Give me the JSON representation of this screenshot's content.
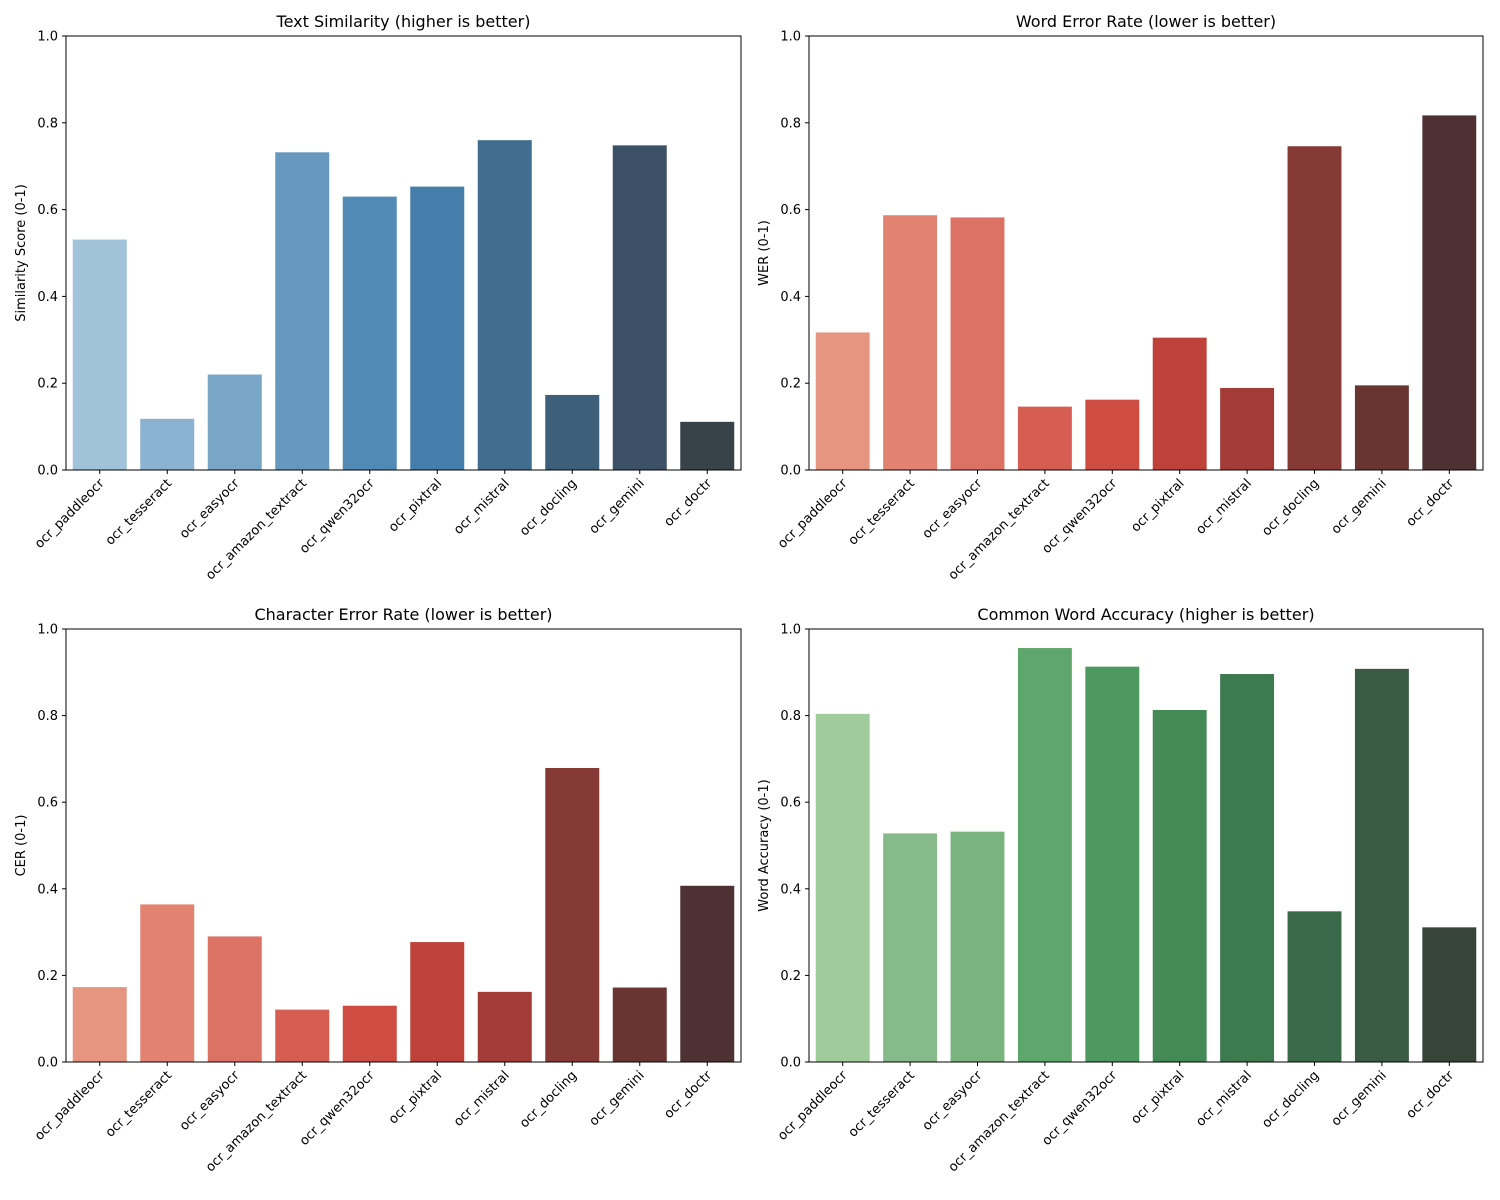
{
  "chart_data": [
    {
      "type": "bar",
      "title": "Text Similarity (higher is better)",
      "xlabel": "",
      "ylabel": "Similarity Score (0-1)",
      "ylim": [
        0,
        1
      ],
      "yticks": [
        "0.0",
        "0.2",
        "0.4",
        "0.6",
        "0.8",
        "1.0"
      ],
      "categories": [
        "ocr_paddleocr",
        "ocr_tesseract",
        "ocr_easyocr",
        "ocr_amazon_textract",
        "ocr_qwen32ocr",
        "ocr_pixtral",
        "ocr_mistral",
        "ocr_docling",
        "ocr_gemini",
        "ocr_doctr"
      ],
      "values": [
        0.531,
        0.118,
        0.22,
        0.732,
        0.63,
        0.653,
        0.76,
        0.173,
        0.748,
        0.111
      ],
      "colors": [
        "#a0c3d9",
        "#8bb2d0",
        "#79a6c7",
        "#6799bf",
        "#528ab6",
        "#457eaa",
        "#416e90",
        "#3e5f7a",
        "#3c5166",
        "#374249"
      ],
      "grid": false,
      "legend": "none"
    },
    {
      "type": "bar",
      "title": "Word Error Rate (lower is better)",
      "xlabel": "",
      "ylabel": "WER (0-1)",
      "ylim": [
        0,
        1
      ],
      "yticks": [
        "0.0",
        "0.2",
        "0.4",
        "0.6",
        "0.8",
        "1.0"
      ],
      "categories": [
        "ocr_paddleocr",
        "ocr_tesseract",
        "ocr_easyocr",
        "ocr_amazon_textract",
        "ocr_qwen32ocr",
        "ocr_pixtral",
        "ocr_mistral",
        "ocr_docling",
        "ocr_gemini",
        "ocr_doctr"
      ],
      "values": [
        0.317,
        0.587,
        0.582,
        0.146,
        0.162,
        0.305,
        0.189,
        0.746,
        0.195,
        0.817
      ],
      "colors": [
        "#e69580",
        "#e28371",
        "#dc7264",
        "#d65d51",
        "#cf4c42",
        "#bf423a",
        "#a33c36",
        "#863a35",
        "#693533",
        "#4e3233"
      ],
      "grid": false,
      "legend": "none"
    },
    {
      "type": "bar",
      "title": "Character Error Rate (lower is better)",
      "xlabel": "",
      "ylabel": "CER (0-1)",
      "ylim": [
        0,
        1
      ],
      "yticks": [
        "0.0",
        "0.2",
        "0.4",
        "0.6",
        "0.8",
        "1.0"
      ],
      "categories": [
        "ocr_paddleocr",
        "ocr_tesseract",
        "ocr_easyocr",
        "ocr_amazon_textract",
        "ocr_qwen32ocr",
        "ocr_pixtral",
        "ocr_mistral",
        "ocr_docling",
        "ocr_gemini",
        "ocr_doctr"
      ],
      "values": [
        0.173,
        0.364,
        0.29,
        0.121,
        0.13,
        0.277,
        0.162,
        0.679,
        0.172,
        0.407
      ],
      "colors": [
        "#e69580",
        "#e28371",
        "#dc7264",
        "#d65d51",
        "#cf4c42",
        "#bf423a",
        "#a33c36",
        "#863a35",
        "#693533",
        "#4e3233"
      ],
      "grid": false,
      "legend": "none"
    },
    {
      "type": "bar",
      "title": "Common Word Accuracy (higher is better)",
      "xlabel": "",
      "ylabel": "Word Accuracy (0-1)",
      "ylim": [
        0,
        1
      ],
      "yticks": [
        "0.0",
        "0.2",
        "0.4",
        "0.6",
        "0.8",
        "1.0"
      ],
      "categories": [
        "ocr_paddleocr",
        "ocr_tesseract",
        "ocr_easyocr",
        "ocr_amazon_textract",
        "ocr_qwen32ocr",
        "ocr_pixtral",
        "ocr_mistral",
        "ocr_docling",
        "ocr_gemini",
        "ocr_doctr"
      ],
      "values": [
        0.804,
        0.528,
        0.532,
        0.956,
        0.913,
        0.813,
        0.896,
        0.348,
        0.908,
        0.311
      ],
      "colors": [
        "#a0cb9b",
        "#87ba8a",
        "#79b37e",
        "#5ea66b",
        "#4e995f",
        "#448a56",
        "#3e7a50",
        "#3b6a4b",
        "#3a5a44",
        "#374539"
      ],
      "grid": false,
      "legend": "none"
    }
  ]
}
